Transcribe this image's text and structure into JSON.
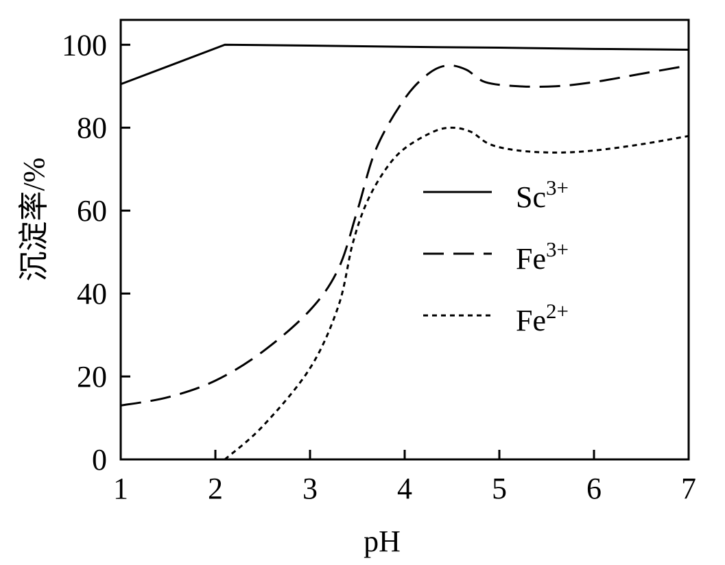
{
  "chart_data": {
    "type": "line",
    "xlabel": "pH",
    "ylabel": "沉淀率/%",
    "xlim": [
      1,
      7
    ],
    "ylim": [
      0,
      106
    ],
    "x_ticks": [
      1,
      2,
      3,
      4,
      5,
      6,
      7
    ],
    "y_ticks": [
      0,
      20,
      40,
      60,
      80,
      100
    ],
    "grid": false,
    "legend_position": "right-middle",
    "series": [
      {
        "name": "Sc",
        "superscript": "3+",
        "style": "solid",
        "points": [
          [
            1.0,
            90.5
          ],
          [
            2.1,
            100.0
          ],
          [
            3.0,
            99.8
          ],
          [
            4.0,
            99.5
          ],
          [
            5.0,
            99.3
          ],
          [
            6.0,
            99.0
          ],
          [
            7.0,
            98.8
          ]
        ]
      },
      {
        "name": "Fe",
        "superscript": "3+",
        "style": "dashed",
        "points": [
          [
            1.0,
            13.0
          ],
          [
            1.5,
            15.0
          ],
          [
            2.0,
            19.0
          ],
          [
            2.5,
            26.0
          ],
          [
            3.0,
            36.0
          ],
          [
            3.3,
            46.0
          ],
          [
            3.5,
            60.0
          ],
          [
            3.7,
            75.0
          ],
          [
            4.0,
            87.0
          ],
          [
            4.25,
            93.0
          ],
          [
            4.45,
            95.0
          ],
          [
            4.65,
            94.0
          ],
          [
            4.85,
            91.0
          ],
          [
            5.2,
            90.0
          ],
          [
            5.6,
            90.0
          ],
          [
            6.0,
            91.0
          ],
          [
            6.5,
            93.0
          ],
          [
            7.0,
            95.0
          ]
        ]
      },
      {
        "name": "Fe",
        "superscript": "2+",
        "style": "dotted",
        "points": [
          [
            2.1,
            0.0
          ],
          [
            2.5,
            8.0
          ],
          [
            3.0,
            22.0
          ],
          [
            3.3,
            37.0
          ],
          [
            3.45,
            52.0
          ],
          [
            3.6,
            62.0
          ],
          [
            3.8,
            70.0
          ],
          [
            4.0,
            75.0
          ],
          [
            4.3,
            79.0
          ],
          [
            4.5,
            80.0
          ],
          [
            4.7,
            79.0
          ],
          [
            4.9,
            76.0
          ],
          [
            5.2,
            74.5
          ],
          [
            5.6,
            74.0
          ],
          [
            6.0,
            74.5
          ],
          [
            6.5,
            76.0
          ],
          [
            7.0,
            78.0
          ]
        ]
      }
    ]
  }
}
